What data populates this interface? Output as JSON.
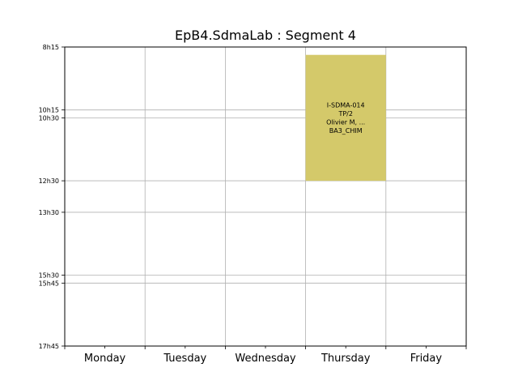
{
  "chart_data": {
    "type": "timetable",
    "title": "EpB4.SdmaLab : Segment 4",
    "days": [
      "Monday",
      "Tuesday",
      "Wednesday",
      "Thursday",
      "Friday"
    ],
    "time_ticks": [
      "8h15",
      "10h15",
      "10h30",
      "12h30",
      "13h30",
      "15h30",
      "15h45",
      "17h45"
    ],
    "y_range": [
      "8h15",
      "17h45"
    ],
    "grid": true,
    "events": [
      {
        "day": "Thursday",
        "start": "8h30",
        "end": "12h30",
        "color": "#d4c96a",
        "lines": [
          "I-SDMA-014",
          "TP/2",
          "Olivier M, ...",
          "BA3_CHIM"
        ]
      }
    ]
  }
}
